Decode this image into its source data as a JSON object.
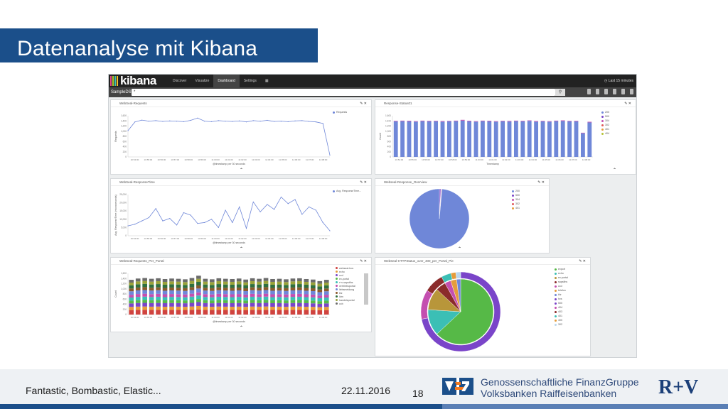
{
  "slide": {
    "title": "Datenanalyse mit Kibana",
    "footer_left": "Fantastic, Bombastic, Elastic...",
    "date": "22.11.2016",
    "page_number": "18",
    "bank_line1": "Genossenschaftliche FinanzGruppe",
    "bank_line2": "Volksbanken Raiffeisenbanken",
    "rv_logo": "R+V",
    "colors": {
      "title_bg": "#1b4f8a",
      "footer_bg": "#eef1f4"
    }
  },
  "kibana": {
    "logo": "kibana",
    "nav": [
      "Discover",
      "Visualize",
      "Dashboard",
      "Settings"
    ],
    "active_nav": "Dashboard",
    "time_label": "Last 15 minutes",
    "datasource": "SampleDS",
    "search_value": "*",
    "panels": {
      "requests": {
        "title": "WebSeal-Requests",
        "legend": [
          "Requests"
        ],
        "ylabel": "Requests",
        "xlabel": "@timestamp per 30 seconds",
        "yticks": [
          "1,600",
          "1,400",
          "1,200",
          "1,000",
          "800",
          "600",
          "400",
          "200",
          "0"
        ],
        "xticks": [
          "10:54:00",
          "10:55:00",
          "10:56:00",
          "10:57:00",
          "10:58:00",
          "10:59:00",
          "11:00:00",
          "11:01:00",
          "11:02:00",
          "11:03:00",
          "11:04:00",
          "11:05:00",
          "11:06:00",
          "11:07:00",
          "11:08:00"
        ]
      },
      "response_status": {
        "title": "Response-Status01",
        "legend": [
          "200",
          "500",
          "304",
          "302",
          "401",
          "404"
        ],
        "ylabel": "Count",
        "xlabel": "Timestamp",
        "yticks": [
          "1,600",
          "1,400",
          "1,200",
          "1,000",
          "800",
          "600",
          "400",
          "200",
          "0"
        ],
        "xticks": [
          "10:54:00",
          "10:55:00",
          "10:56:00",
          "10:57:00",
          "10:58:00",
          "10:59:00",
          "11:00:00",
          "11:01:00",
          "11:02:00",
          "11:03:00",
          "11:04:00",
          "11:05:00",
          "11:06:00",
          "11:07:00",
          "11:08:00"
        ]
      },
      "response_time": {
        "title": "WebSeal-ResponseTime",
        "legend": [
          "Avg. ResponseTime..."
        ],
        "ylabel": "Avg. ResponseTime (microseconds)",
        "xlabel": "@timestamp per 30 seconds",
        "yticks": [
          "25,000",
          "20,000",
          "15,000",
          "10,000",
          "5,000",
          "0"
        ],
        "xticks": [
          "10:54:00",
          "10:55:00",
          "10:56:00",
          "10:57:00",
          "10:58:00",
          "10:59:00",
          "11:00:00",
          "11:01:00",
          "11:02:00",
          "11:03:00",
          "11:04:00",
          "11:05:00",
          "11:06:00",
          "11:07:00",
          "11:08:00"
        ]
      },
      "response_overview": {
        "title": "Webseal-Response_Overview",
        "legend": [
          "200",
          "500",
          "304",
          "302",
          "401"
        ]
      },
      "requests_per_portal": {
        "title": "WebSeal-Requests_Per_Portal",
        "ylabel": "Count",
        "xlabel": "@timestamp per 30 seconds",
        "legend": [
          "webseal-bos",
          "echo",
          "ccd",
          "ex-portal",
          "r+v-sapsiths",
          "vertriebsportal",
          "liebsmeldung",
          "kfz",
          "ldm",
          "handelsportal",
          "ccb"
        ],
        "yticks": [
          "1,600",
          "1,400",
          "1,200",
          "1,000",
          "800",
          "600",
          "400",
          "200",
          "0"
        ],
        "xticks": [
          "10:54:00",
          "10:55:00",
          "10:56:00",
          "10:57:00",
          "10:58:00",
          "10:59:00",
          "11:00:00",
          "11:01:00",
          "11:02:00",
          "11:03:00",
          "11:04:00",
          "11:05:00",
          "11:06:00",
          "11:07:00",
          "11:08:00"
        ]
      },
      "http_status_portal": {
        "title": "WebSeal-HTTPStatus_over_400_per_Portal_Pie",
        "legend": [
          "export",
          "echo",
          "ex-portal",
          "sapsiths",
          "ccd",
          "telefon",
          "kfz",
          "hvs",
          "500",
          "404",
          "403",
          "401",
          "400",
          "302"
        ]
      }
    }
  },
  "chart_data": [
    {
      "type": "line",
      "title": "WebSeal-Requests",
      "xlabel": "@timestamp per 30 seconds",
      "ylabel": "Requests",
      "ylim": [
        0,
        1600
      ],
      "x": [
        "10:54:00",
        "10:54:30",
        "10:55:00",
        "10:55:30",
        "10:56:00",
        "10:56:30",
        "10:57:00",
        "10:57:30",
        "10:58:00",
        "10:58:30",
        "10:59:00",
        "10:59:30",
        "11:00:00",
        "11:00:30",
        "11:01:00",
        "11:01:30",
        "11:02:00",
        "11:02:30",
        "11:03:00",
        "11:03:30",
        "11:04:00",
        "11:04:30",
        "11:05:00",
        "11:05:30",
        "11:06:00",
        "11:06:30",
        "11:07:00",
        "11:07:30",
        "11:08:00",
        "11:08:30"
      ],
      "series": [
        {
          "name": "Requests",
          "values": [
            1020,
            1360,
            1430,
            1390,
            1410,
            1380,
            1400,
            1390,
            1370,
            1420,
            1510,
            1390,
            1370,
            1410,
            1390,
            1380,
            1400,
            1360,
            1410,
            1390,
            1420,
            1380,
            1390,
            1370,
            1400,
            1410,
            1380,
            1360,
            1300,
            70
          ]
        }
      ]
    },
    {
      "type": "bar",
      "title": "Response-Status01",
      "xlabel": "Timestamp",
      "ylabel": "Count",
      "ylim": [
        0,
        1600
      ],
      "categories": [
        "10:54:00",
        "10:54:30",
        "10:55:00",
        "10:55:30",
        "10:56:00",
        "10:56:30",
        "10:57:00",
        "10:57:30",
        "10:58:00",
        "10:58:30",
        "10:59:00",
        "10:59:30",
        "11:00:00",
        "11:00:30",
        "11:01:00",
        "11:01:30",
        "11:02:00",
        "11:02:30",
        "11:03:00",
        "11:03:30",
        "11:04:00",
        "11:04:30",
        "11:05:00",
        "11:05:30",
        "11:06:00",
        "11:06:30",
        "11:07:00",
        "11:07:30",
        "11:08:00",
        "11:08:30"
      ],
      "series": [
        {
          "name": "200",
          "values": [
            1380,
            1390,
            1380,
            1370,
            1390,
            1380,
            1385,
            1370,
            1380,
            1390,
            1410,
            1380,
            1370,
            1390,
            1380,
            1370,
            1385,
            1375,
            1390,
            1380,
            1400,
            1370,
            1380,
            1370,
            1390,
            1395,
            1380,
            1380,
            920,
            1340
          ]
        },
        {
          "name": "500",
          "values": [
            20,
            20,
            25,
            20,
            20,
            22,
            20,
            25,
            20,
            20,
            30,
            25,
            20,
            20,
            25,
            20,
            20,
            25,
            20,
            22,
            20,
            25,
            20,
            20,
            20,
            25,
            20,
            22,
            20,
            25
          ]
        }
      ]
    },
    {
      "type": "line",
      "title": "WebSeal-ResponseTime",
      "xlabel": "@timestamp per 30 seconds",
      "ylabel": "Avg. ResponseTime (microseconds)",
      "ylim": [
        0,
        25000
      ],
      "x": [
        "10:54:00",
        "10:54:30",
        "10:55:00",
        "10:55:30",
        "10:56:00",
        "10:56:30",
        "10:57:00",
        "10:57:30",
        "10:58:00",
        "10:58:30",
        "10:59:00",
        "10:59:30",
        "11:00:00",
        "11:00:30",
        "11:01:00",
        "11:01:30",
        "11:02:00",
        "11:02:30",
        "11:03:00",
        "11:03:30",
        "11:04:00",
        "11:04:30",
        "11:05:00",
        "11:05:30",
        "11:06:00",
        "11:06:30",
        "11:07:00",
        "11:07:30",
        "11:08:00",
        "11:08:30"
      ],
      "series": [
        {
          "name": "Avg. ResponseTime...",
          "values": [
            6000,
            7000,
            9000,
            11000,
            16500,
            9000,
            10500,
            6500,
            14000,
            12500,
            7500,
            8000,
            10000,
            5000,
            15500,
            8000,
            17500,
            4500,
            20500,
            14500,
            19000,
            16000,
            23500,
            19500,
            22000,
            13000,
            17500,
            15500,
            8000,
            3000
          ]
        }
      ]
    },
    {
      "type": "pie",
      "title": "Webseal-Response_Overview",
      "categories": [
        "200",
        "500",
        "304",
        "302",
        "401"
      ],
      "values": [
        98.6,
        0.8,
        0.3,
        0.2,
        0.1
      ]
    },
    {
      "type": "bar",
      "title": "WebSeal-Requests_Per_Portal",
      "xlabel": "@timestamp per 30 seconds",
      "ylabel": "Count",
      "ylim": [
        0,
        1600
      ],
      "stacked": true,
      "categories": [
        "10:54:00",
        "10:54:30",
        "10:55:00",
        "10:55:30",
        "10:56:00",
        "10:56:30",
        "10:57:00",
        "10:57:30",
        "10:58:00",
        "10:58:30",
        "10:59:00",
        "10:59:30",
        "11:00:00",
        "11:00:30",
        "11:01:00",
        "11:01:30",
        "11:02:00",
        "11:02:30",
        "11:03:00",
        "11:03:30",
        "11:04:00",
        "11:04:30",
        "11:05:00",
        "11:05:30",
        "11:06:00",
        "11:06:30",
        "11:07:00",
        "11:07:30",
        "11:08:00",
        "11:08:30"
      ],
      "totals": [
        1350,
        1400,
        1420,
        1390,
        1410,
        1380,
        1400,
        1390,
        1370,
        1420,
        1510,
        1390,
        1370,
        1410,
        1390,
        1380,
        1400,
        1360,
        1410,
        1390,
        1420,
        1380,
        1390,
        1370,
        1400,
        1410,
        1380,
        1360,
        1300,
        1350
      ]
    },
    {
      "type": "pie",
      "title": "WebSeal-HTTPStatus_over_400_per_Portal_Pie",
      "inner": {
        "categories": [
          "export",
          "echo",
          "ex-portal",
          "sapsiths",
          "ccd",
          "telefon",
          "kfz"
        ],
        "values": [
          63,
          13,
          11,
          5,
          3,
          3,
          2
        ]
      },
      "outer": {
        "categories": [
          "500",
          "404",
          "403",
          "401",
          "400",
          "302"
        ],
        "values": [
          72,
          12,
          8,
          4,
          2,
          2
        ]
      }
    }
  ]
}
